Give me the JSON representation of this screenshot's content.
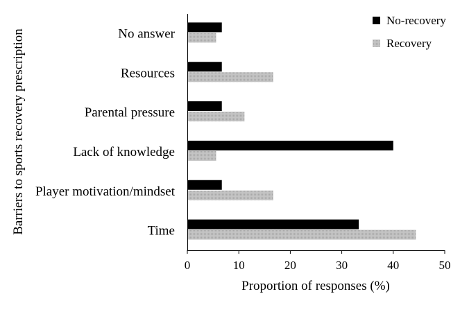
{
  "chart_data": {
    "type": "bar",
    "orientation": "horizontal",
    "categories": [
      "No answer",
      "Resources",
      "Parental pressure",
      "Lack of knowledge",
      "Player motivation/mindset",
      "Time"
    ],
    "series": [
      {
        "name": "No-recovery",
        "color": "#000000",
        "values": [
          6.7,
          6.7,
          6.7,
          40.0,
          6.7,
          33.3
        ]
      },
      {
        "name": "Recovery",
        "color": "#c0c0c0",
        "values": [
          5.6,
          16.7,
          11.1,
          5.6,
          16.7,
          44.4
        ]
      }
    ],
    "xlabel": "Proportion of responses (%)",
    "ylabel": "Barriers to sports recovery prescription",
    "xlim": [
      0,
      50
    ],
    "xticks": [
      "0",
      "10",
      "20",
      "30",
      "40",
      "50"
    ],
    "grid": false,
    "legend_position": "top-right"
  }
}
